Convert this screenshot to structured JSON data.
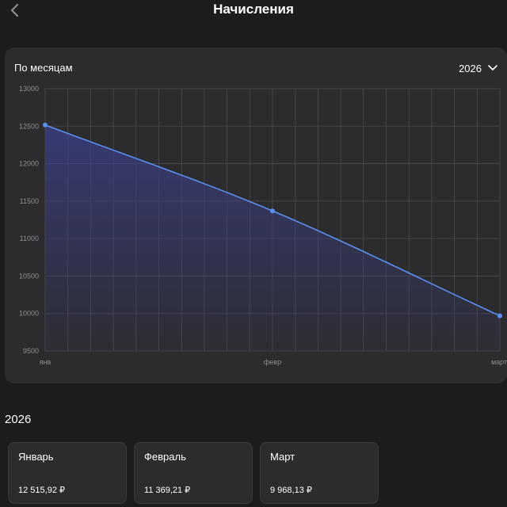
{
  "nav": {
    "title": "Начисления",
    "back_icon": "chevron-left-icon"
  },
  "chart_card": {
    "label": "По месяцам",
    "year": "2026",
    "dropdown_icon": "chevron-down-icon"
  },
  "chart_data": {
    "type": "area",
    "categories": [
      "янв",
      "февр",
      "март"
    ],
    "values": [
      12515.92,
      11369.21,
      9968.13
    ],
    "ylim": [
      9500,
      13000
    ],
    "yticks": [
      9500,
      10000,
      10500,
      11000,
      11500,
      12000,
      12500,
      13000
    ],
    "grid": true,
    "line_color": "#5b8ff0",
    "fill_color": "#3b3f8a"
  },
  "section": {
    "title": "2026",
    "months": [
      {
        "name": "Январь",
        "amount": "12 515,92 ₽"
      },
      {
        "name": "Февраль",
        "amount": "11 369,21 ₽"
      },
      {
        "name": "Март",
        "amount": "9 968,13 ₽"
      }
    ]
  },
  "colors": {
    "background": "#1c1c1e",
    "card": "#2c2c2e",
    "accent": "#5b8ff0"
  }
}
